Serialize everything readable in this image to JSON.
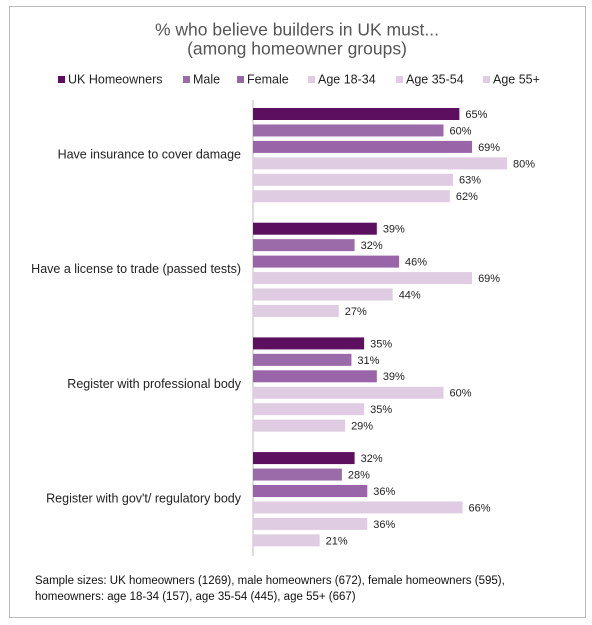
{
  "chart_data": {
    "type": "bar",
    "orientation": "horizontal",
    "title": "% who believe builders in UK must...",
    "subtitle": "(among homeowner groups)",
    "categories": [
      "Have insurance to cover damage",
      "Have a license to trade (passed tests)",
      "Register with professional body",
      "Register with gov't/ regulatory body"
    ],
    "series": [
      {
        "name": "UK Homeowners",
        "color": "#5c0f5e",
        "values": [
          65,
          39,
          35,
          32
        ],
        "value_labels": [
          "65%",
          "39%",
          "35%",
          "32%"
        ]
      },
      {
        "name": "Male",
        "color": "#9b6aa8",
        "values": [
          60,
          32,
          31,
          28
        ],
        "value_labels": [
          "60%",
          "32%",
          "31%",
          "28%"
        ]
      },
      {
        "name": "Female",
        "color": "#9a64a9",
        "values": [
          69,
          46,
          39,
          36
        ],
        "value_labels": [
          "69%",
          "46%",
          "39%",
          "36%"
        ]
      },
      {
        "name": "Age 18-34",
        "color": "#dfcbe2",
        "values": [
          80,
          69,
          60,
          66
        ],
        "value_labels": [
          "80%",
          "69%",
          "60%",
          "66%"
        ]
      },
      {
        "name": "Age 35-54",
        "color": "#dfcbe2",
        "values": [
          63,
          44,
          35,
          36
        ],
        "value_labels": [
          "63%",
          "44%",
          "35%",
          "36%"
        ]
      },
      {
        "name": "Age 55+",
        "color": "#dfcbe2",
        "values": [
          62,
          27,
          29,
          21
        ],
        "value_labels": [
          "62%",
          "27%",
          "29%",
          "21%"
        ]
      }
    ],
    "note": "Sample sizes: UK homeowners (1269), male homeowners (672), female homeowners (595), homeowners: age 18-34 (157), age 35-54 (445), age 55+ (667)"
  }
}
